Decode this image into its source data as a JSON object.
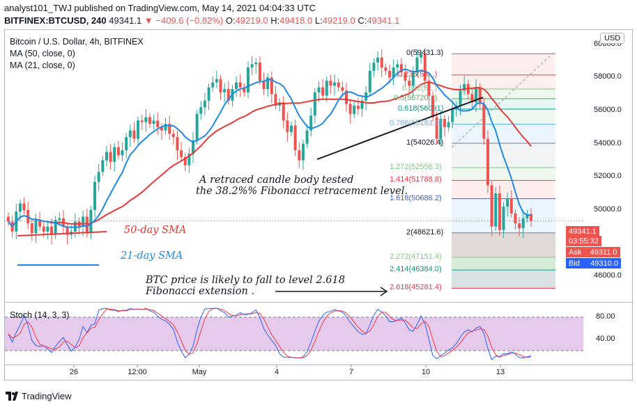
{
  "header": {
    "line1": "analyst101_TWJ published on TradingView.com, May 14, 2021 04:04:33 UTC",
    "symbol": "BITFINEX:BTCUSD, 240",
    "price": "49341.1",
    "change": "−409.6 (−0.82%)",
    "o_label": "O:",
    "o": "49219.0",
    "h_label": "H:",
    "h": "49418.0",
    "l_label": "L:",
    "l": "49219.0",
    "c_label": "C:",
    "c": "49341.1"
  },
  "legend": {
    "title": "Bitcoin / U.S. Dollar, 4h, BITFINEX",
    "ma50": "MA (50, close, 0)",
    "ma21": "MA (21, close, 0)",
    "stoch": "Stoch (14, 3, 3)"
  },
  "annotations": {
    "retrace_line1": "A  retraced candle body tested",
    "retrace_line2": "the 38.2%% Fibonacci retracement level.",
    "sma50": "50-day SMA",
    "sma21": "21-day SMA",
    "target_line1": "BTC price is likely to fall to level 2.618",
    "target_line2": "Fibonacci extension ."
  },
  "fib_levels": [
    {
      "label": "0(59431.3)",
      "value": 59431.3,
      "color": "#787b86"
    },
    {
      "label": "0.236(58...)",
      "value": 58150,
      "color": "#f23645"
    },
    {
      "label": "0.382(5...)",
      "value": 57300,
      "color": "#81c784"
    },
    {
      "label": "0.5(56720...)",
      "value": 56720,
      "color": "#4caf50"
    },
    {
      "label": "0.618(56091)",
      "value": 56091,
      "color": "#089981"
    },
    {
      "label": "0.786(55183.1)",
      "value": 55183.1,
      "color": "#64b5f6"
    },
    {
      "label": "1(54026.4)",
      "value": 54026.4,
      "color": "#787b86"
    },
    {
      "label": "1.272(52556.3)",
      "value": 52556.3,
      "color": "#81c784"
    },
    {
      "label": "1.414(51788.8)",
      "value": 51788.8,
      "color": "#f23645"
    },
    {
      "label": "1.618(50686.2)",
      "value": 50686.2,
      "color": "#2962ff"
    },
    {
      "label": "2(48621.6)",
      "value": 48621.6,
      "color": "#787b86"
    },
    {
      "label": "2.272(47151.4)",
      "value": 47151.4,
      "color": "#81c784"
    },
    {
      "label": "2.414(46384.0)",
      "value": 46384.0,
      "color": "#089981"
    },
    {
      "label": "2.618(45281.4)",
      "value": 45281.4,
      "color": "#f23645"
    }
  ],
  "price_axis": {
    "currency": "USD",
    "labels": [
      "60000.0",
      "58000.0",
      "56000.0",
      "54000.0",
      "52000.0",
      "50000.0",
      "46000.0"
    ],
    "current_price": "49341.1",
    "countdown": "03:55:32",
    "ask_label": "Ask",
    "ask": "49311.0",
    "bid_label": "Bid",
    "bid": "49310.0"
  },
  "stoch_axis": {
    "labels": [
      "80.00",
      "40.00"
    ]
  },
  "time_axis": {
    "labels": [
      "26",
      "12:00",
      "May",
      "4",
      "7",
      "10",
      "13"
    ]
  },
  "footer": {
    "brand": "TradingView"
  },
  "colors": {
    "up": "#26a69a",
    "down": "#ef5350",
    "ma50": "#e53935",
    "ma21": "#1e88e5",
    "stoch_k": "#2962ff",
    "stoch_d": "#f23645",
    "stoch_band": "#e1bee7"
  },
  "chart_data": {
    "type": "candlestick",
    "title": "Bitcoin / U.S. Dollar, 4h, BITFINEX",
    "ylim": [
      44500,
      60700
    ],
    "price_ticks": [
      60000,
      58000,
      56000,
      54000,
      52000,
      50000,
      46000
    ],
    "current_price": 49341.1,
    "candles_close": [
      49300,
      48700,
      49900,
      50400,
      50000,
      49200,
      48600,
      49400,
      49000,
      48700,
      49000,
      48500,
      49400,
      49500,
      49000,
      48500,
      48700,
      49300,
      49000,
      49600,
      48600,
      50000,
      51700,
      52300,
      53000,
      53500,
      52900,
      53800,
      53300,
      53600,
      54400,
      54800,
      54300,
      55400,
      55300,
      55600,
      55200,
      55400,
      55000,
      54800,
      55200,
      54600,
      54400,
      53600,
      53200,
      52700,
      53400,
      54200,
      55800,
      56200,
      56600,
      57400,
      57700,
      57900,
      57100,
      57300,
      56600,
      57300,
      57700,
      57400,
      57100,
      58600,
      58800,
      58900,
      57800,
      57300,
      58000,
      57000,
      56300,
      56500,
      55400,
      54700,
      55100,
      53600,
      53000,
      54000,
      54800,
      55700,
      57100,
      57400,
      56900,
      57800,
      57500,
      57700,
      57400,
      57200,
      56400,
      55800,
      56300,
      56100,
      56600,
      57100,
      58400,
      58900,
      59200,
      58600,
      58400,
      58000,
      58600,
      58800,
      58300,
      57800,
      57500,
      58300,
      59200,
      59400,
      57800,
      56900,
      55600,
      54300,
      55500,
      55000,
      55300,
      56100,
      56300,
      57200,
      57600,
      57000,
      56500,
      57400,
      56400,
      54300,
      51500,
      49000,
      51000,
      48800,
      50200,
      50700,
      49800,
      49200,
      48900,
      49500,
      49750,
      49341
    ],
    "stoch": {
      "ylim": [
        0,
        100
      ],
      "upper_band": 80,
      "lower_band": 20,
      "ticks": [
        80,
        40
      ]
    }
  }
}
